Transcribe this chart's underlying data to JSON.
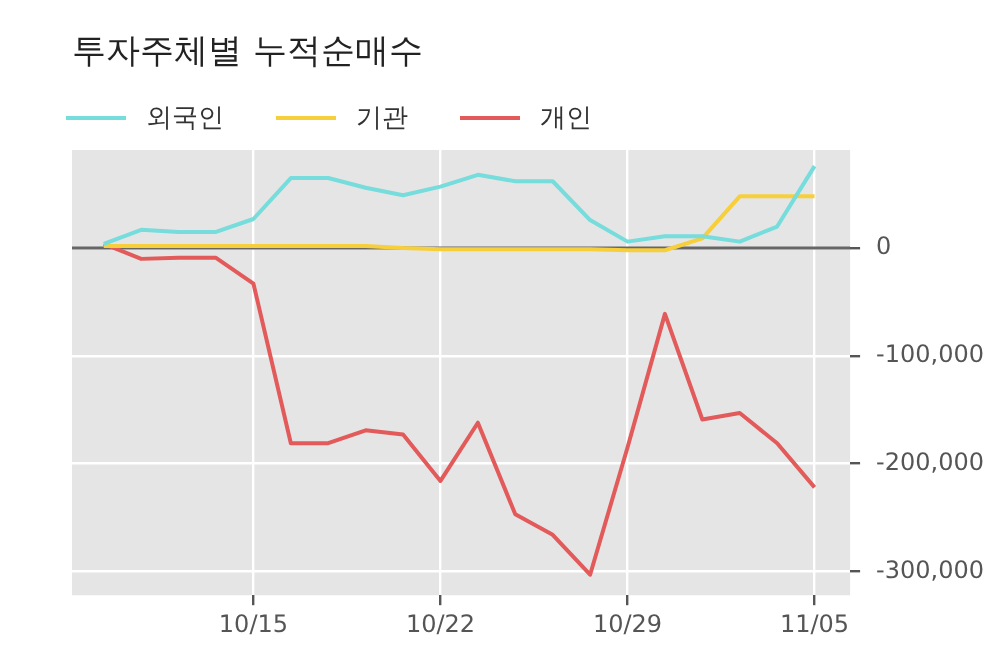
{
  "chart_data": {
    "type": "line",
    "title": "투자주체별 누적순매수",
    "categories": [
      null,
      null,
      null,
      null,
      "10/15",
      null,
      null,
      null,
      null,
      "10/22",
      null,
      null,
      null,
      null,
      "10/29",
      null,
      null,
      null,
      null,
      "11/05"
    ],
    "series": [
      {
        "name": "외국인",
        "color": "#76dcdc",
        "values": [
          4000,
          17000,
          15000,
          15000,
          27000,
          65000,
          65000,
          56000,
          49000,
          57000,
          68000,
          62000,
          62000,
          26000,
          6000,
          11000,
          11000,
          6000,
          20000,
          76000
        ]
      },
      {
        "name": "기관",
        "color": "#f7cf3b",
        "values": [
          2000,
          2000,
          2000,
          2000,
          2000,
          2000,
          2000,
          2000,
          0,
          -1000,
          -1000,
          -1000,
          -1000,
          -1000,
          -2000,
          -2000,
          9000,
          48000,
          48000,
          48000
        ]
      },
      {
        "name": "개인",
        "color": "#e35a5a",
        "values": [
          4000,
          -10000,
          -9000,
          -9000,
          -33000,
          -181000,
          -181000,
          -169000,
          -173000,
          -216000,
          -162000,
          -247000,
          -266000,
          -303000,
          -185000,
          -61000,
          -159000,
          -153000,
          -181000,
          -222000
        ]
      }
    ],
    "ylim": [
      -322000,
      91000
    ],
    "yticks": [
      {
        "value": -300000,
        "label": "-300,000"
      },
      {
        "value": -200000,
        "label": "-200,000"
      },
      {
        "value": -100000,
        "label": "-100,000"
      },
      0
    ],
    "ref_lines": [
      {
        "axis": "y",
        "value": 0,
        "color": "#666666"
      }
    ],
    "grid": true,
    "legend": "top left",
    "marker": "none",
    "line_style": "solid"
  }
}
